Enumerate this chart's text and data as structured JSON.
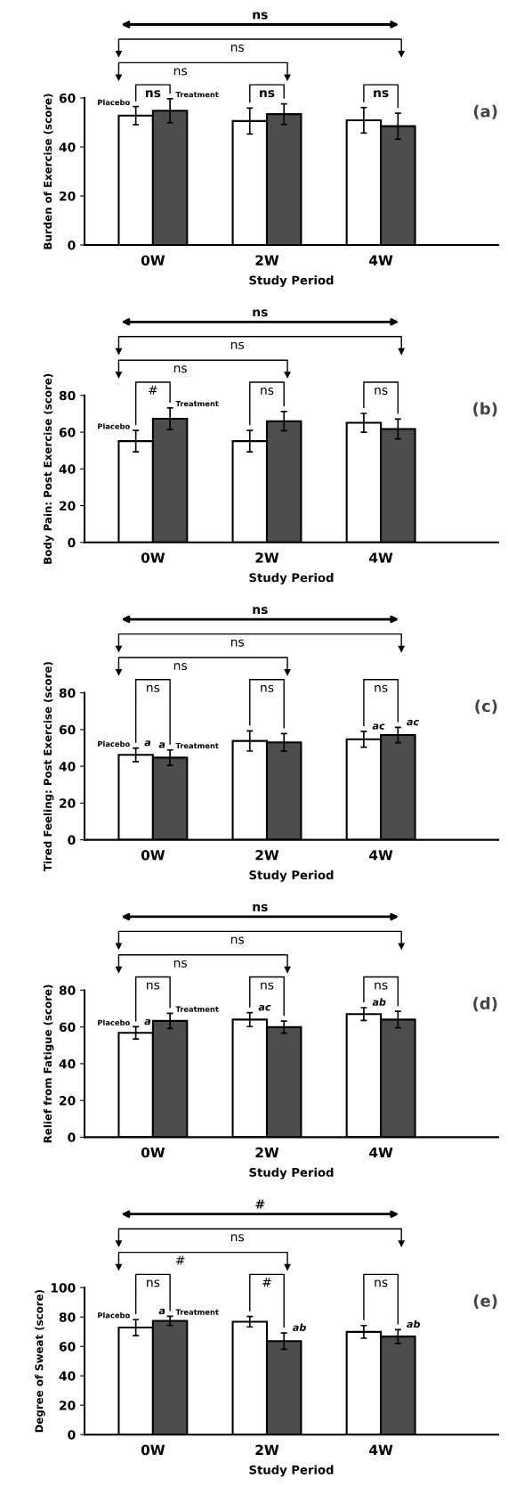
{
  "chart_data": [
    {
      "type": "bar",
      "title": "(a)",
      "xlabel": "Study Period",
      "ylabel": "Burden of Exercise (score)",
      "categories": [
        "0W",
        "2W",
        "4W"
      ],
      "series": [
        {
          "name": "Placebo",
          "color": "#ffffff",
          "values": [
            52.8,
            50.6,
            50.9
          ],
          "errors": [
            3.7,
            5.3,
            5.2
          ]
        },
        {
          "name": "Treatment",
          "color": "#4d4d4d",
          "values": [
            54.8,
            53.4,
            48.5
          ],
          "errors": [
            4.9,
            4.2,
            5.3
          ]
        }
      ],
      "ylim": [
        0,
        60
      ],
      "yticks": [
        0,
        20,
        40,
        60
      ],
      "annotations": [
        "ns",
        "ns",
        "ns",
        "ns",
        "ns",
        "ns"
      ]
    },
    {
      "type": "bar",
      "title": "(b)",
      "xlabel": "Study Period",
      "ylabel": "Body Pain: Post Exercise (score)",
      "categories": [
        "0W",
        "2W",
        "4W"
      ],
      "series": [
        {
          "name": "Placebo",
          "color": "#ffffff",
          "values": [
            55.1,
            55.1,
            65.1
          ],
          "errors": [
            5.8,
            5.8,
            5.1
          ]
        },
        {
          "name": "Treatment",
          "color": "#4d4d4d",
          "values": [
            67.3,
            66.0,
            61.7
          ],
          "errors": [
            5.9,
            5.2,
            5.4
          ]
        }
      ],
      "ylim": [
        0,
        80
      ],
      "yticks": [
        0,
        20,
        40,
        60,
        80
      ],
      "annotations": [
        "ns",
        "ns",
        "ns",
        "#",
        "ns",
        "ns"
      ]
    },
    {
      "type": "bar",
      "title": "(c)",
      "xlabel": "Study Period",
      "ylabel": "Tired Feeling: Post Exercise (score)",
      "categories": [
        "0W",
        "2W",
        "4W"
      ],
      "series": [
        {
          "name": "Placebo",
          "color": "#ffffff",
          "values": [
            46.2,
            53.8,
            54.7
          ],
          "errors": [
            3.7,
            5.5,
            4.3
          ],
          "value_labels": [
            "a",
            null,
            "ac"
          ]
        },
        {
          "name": "Treatment",
          "color": "#4d4d4d",
          "values": [
            44.7,
            53.0,
            57.0
          ],
          "errors": [
            4.2,
            4.8,
            4.2
          ],
          "value_labels": [
            "a",
            null,
            "ac"
          ]
        }
      ],
      "ylim": [
        0,
        80
      ],
      "yticks": [
        0,
        20,
        40,
        60,
        80
      ],
      "annotations": [
        "ns",
        "ns",
        "ns",
        "ns",
        "ns",
        "ns"
      ]
    },
    {
      "type": "bar",
      "title": "(d)",
      "xlabel": "Study Period",
      "ylabel": "Relief from Fatigue (score)",
      "categories": [
        "0W",
        "2W",
        "4W"
      ],
      "series": [
        {
          "name": "Placebo",
          "color": "#ffffff",
          "values": [
            56.8,
            64.0,
            67.0
          ],
          "errors": [
            3.3,
            3.8,
            3.5
          ],
          "value_labels": [
            "a",
            "ac",
            "ab"
          ]
        },
        {
          "name": "Treatment",
          "color": "#4d4d4d",
          "values": [
            63.3,
            59.9,
            64.0
          ],
          "errors": [
            4.1,
            3.3,
            4.5
          ]
        }
      ],
      "ylim": [
        0,
        80
      ],
      "yticks": [
        0,
        20,
        40,
        60,
        80
      ],
      "annotations": [
        "ns",
        "ns",
        "ns",
        "ns",
        "ns",
        "ns"
      ]
    },
    {
      "type": "bar",
      "title": "(e)",
      "xlabel": "Study Period",
      "ylabel": "Degree of Sweat (score)",
      "categories": [
        "0W",
        "2W",
        "4W"
      ],
      "series": [
        {
          "name": "Placebo",
          "color": "#ffffff",
          "values": [
            72.8,
            76.8,
            69.9
          ],
          "errors": [
            5.5,
            3.5,
            4.3
          ]
        },
        {
          "name": "Treatment",
          "color": "#4d4d4d",
          "values": [
            77.4,
            63.6,
            66.7
          ],
          "errors": [
            3.1,
            5.5,
            4.7
          ],
          "value_labels": [
            "a",
            "ab",
            "ab"
          ]
        }
      ],
      "ylim": [
        0,
        100
      ],
      "yticks": [
        0,
        20,
        40,
        60,
        80,
        100
      ],
      "annotations": [
        "#",
        "ns",
        "#",
        "ns",
        "#",
        "ns"
      ]
    }
  ]
}
